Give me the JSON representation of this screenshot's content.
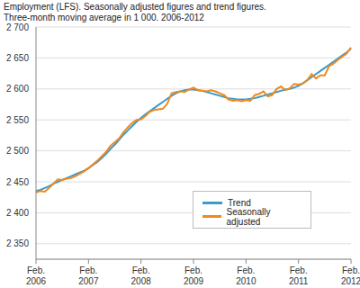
{
  "chart_data": {
    "type": "line",
    "title": "Employment (LFS). Seasonally adjusted figures and trend figures.",
    "subtitle": "Three-month moving average in 1 000. 2006-2012",
    "categories": [
      "Feb. 2006",
      null,
      null,
      null,
      null,
      null,
      null,
      null,
      null,
      null,
      null,
      null,
      "Feb. 2007",
      null,
      null,
      null,
      null,
      null,
      null,
      null,
      null,
      null,
      null,
      null,
      "Feb. 2008",
      null,
      null,
      null,
      null,
      null,
      null,
      null,
      null,
      null,
      null,
      null,
      "Feb. 2009",
      null,
      null,
      null,
      null,
      null,
      null,
      null,
      null,
      null,
      null,
      null,
      "Feb. 2010",
      null,
      null,
      null,
      null,
      null,
      null,
      null,
      null,
      null,
      null,
      null,
      "Feb. 2011",
      null,
      null,
      null,
      null,
      null,
      null,
      null,
      null,
      null,
      null,
      null,
      "Feb. 2012"
    ],
    "series": [
      {
        "name": "Trend",
        "color": "#3c9ac9",
        "values": [
          2435,
          2437,
          2440,
          2443,
          2447,
          2450,
          2453,
          2456,
          2459,
          2462,
          2465,
          2468,
          2472,
          2477,
          2482,
          2488,
          2495,
          2503,
          2510,
          2518,
          2526,
          2533,
          2540,
          2547,
          2553,
          2559,
          2564,
          2569,
          2574,
          2579,
          2584,
          2589,
          2593,
          2596,
          2598,
          2599,
          2599,
          2598,
          2597,
          2595,
          2593,
          2591,
          2589,
          2587,
          2585,
          2584,
          2583,
          2583,
          2583,
          2584,
          2585,
          2587,
          2589,
          2591,
          2593,
          2595,
          2597,
          2599,
          2600,
          2602,
          2605,
          2609,
          2614,
          2619,
          2624,
          2629,
          2634,
          2639,
          2644,
          2649,
          2654,
          2659,
          2665
        ]
      },
      {
        "name": "Seasonally adjusted",
        "color": "#f0891e",
        "values": [
          2433,
          2435,
          2434,
          2440,
          2447,
          2454,
          2453,
          2455,
          2456,
          2459,
          2463,
          2467,
          2472,
          2478,
          2484,
          2491,
          2498,
          2508,
          2514,
          2520,
          2530,
          2538,
          2545,
          2550,
          2551,
          2556,
          2563,
          2566,
          2567,
          2568,
          2576,
          2593,
          2595,
          2596,
          2595,
          2599,
          2602,
          2598,
          2597,
          2596,
          2598,
          2596,
          2593,
          2590,
          2583,
          2581,
          2582,
          2580,
          2582,
          2581,
          2590,
          2592,
          2596,
          2588,
          2590,
          2600,
          2604,
          2598,
          2601,
          2608,
          2607,
          2609,
          2614,
          2624,
          2617,
          2622,
          2622,
          2637,
          2641,
          2647,
          2652,
          2657,
          2667
        ]
      }
    ],
    "ylim": [
      2325,
      2700
    ],
    "yticks": [
      {
        "value": 2350,
        "label": "2 350"
      },
      {
        "value": 2400,
        "label": "2 400"
      },
      {
        "value": 2450,
        "label": "2 450"
      },
      {
        "value": 2500,
        "label": "2 500"
      },
      {
        "value": 2550,
        "label": "2 550"
      },
      {
        "value": 2600,
        "label": "2 600"
      },
      {
        "value": 2650,
        "label": "2 650"
      },
      {
        "value": 2700,
        "label": "2 700"
      }
    ],
    "grid": true,
    "legend": "lower right"
  }
}
